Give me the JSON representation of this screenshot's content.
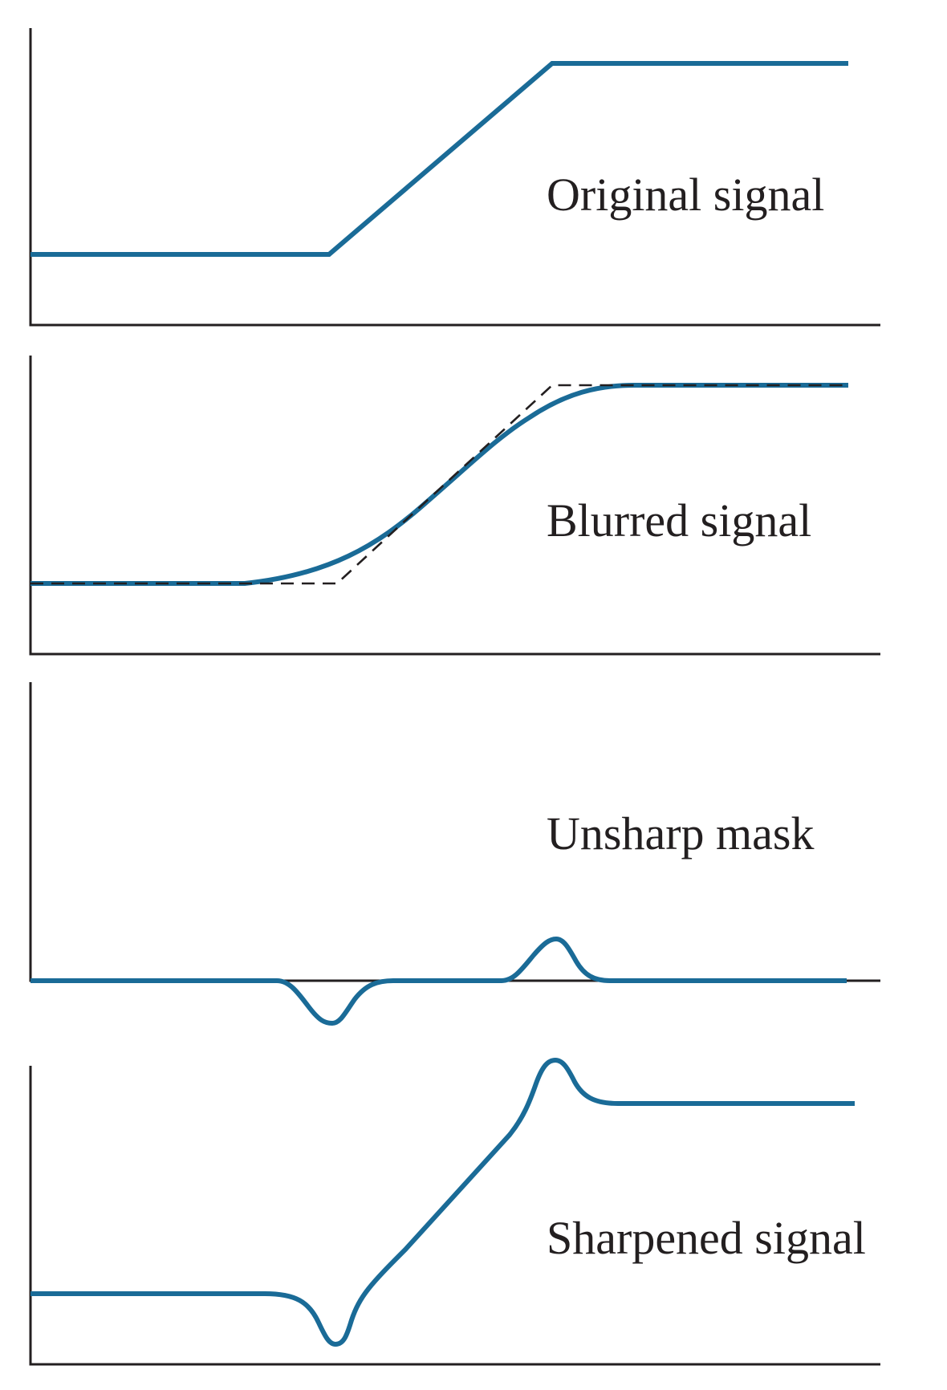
{
  "colors": {
    "signal": "#1a6b97",
    "axis": "#231f20",
    "reference": "#231f20",
    "background": "#ffffff"
  },
  "panels": [
    {
      "id": "original",
      "label": "Original signal"
    },
    {
      "id": "blurred",
      "label": "Blurred signal",
      "reference": "original signal (dashed)"
    },
    {
      "id": "unsharp",
      "label": "Unsharp mask"
    },
    {
      "id": "sharpened",
      "label": "Sharpened signal"
    }
  ]
}
